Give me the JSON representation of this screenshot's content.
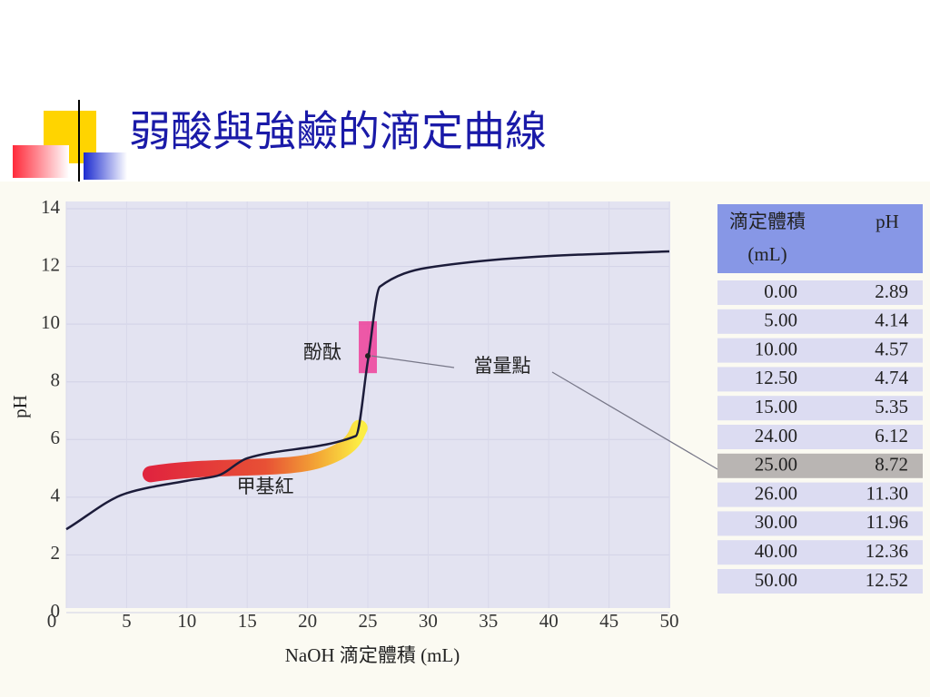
{
  "chart_data": {
    "type": "line",
    "title": "弱酸與強鹼的滴定曲線",
    "x_label": "NaOH 滴定體積 (mL)",
    "y_label": "pH",
    "x": [
      0,
      5,
      10,
      12.5,
      15,
      24,
      25,
      26,
      30,
      40,
      50
    ],
    "x_labels": [
      "0.00",
      "5.00",
      "10.00",
      "12.50",
      "15.00",
      "24.00",
      "25.00",
      "26.00",
      "30.00",
      "40.00",
      "50.00"
    ],
    "values": [
      2.89,
      4.14,
      4.57,
      4.74,
      5.35,
      6.12,
      8.72,
      11.3,
      11.96,
      12.36,
      12.52
    ],
    "value_labels": [
      "2.89",
      "4.14",
      "4.57",
      "4.74",
      "5.35",
      "6.12",
      "8.72",
      "11.30",
      "11.96",
      "12.36",
      "12.52"
    ],
    "color": "#1c1c3a",
    "xlim": [
      0,
      50
    ],
    "xticks": [
      0,
      5,
      10,
      15,
      20,
      25,
      30,
      35,
      40,
      45,
      50
    ],
    "ylim": [
      0,
      14
    ],
    "yticks": [
      0,
      2,
      4,
      6,
      8,
      10,
      12,
      14
    ],
    "annotations": [
      "酚酞",
      "當量點",
      "甲基紅"
    ],
    "table_header": {
      "volume": [
        "滴定體積",
        "(mL)"
      ],
      "ph": "pH"
    }
  }
}
